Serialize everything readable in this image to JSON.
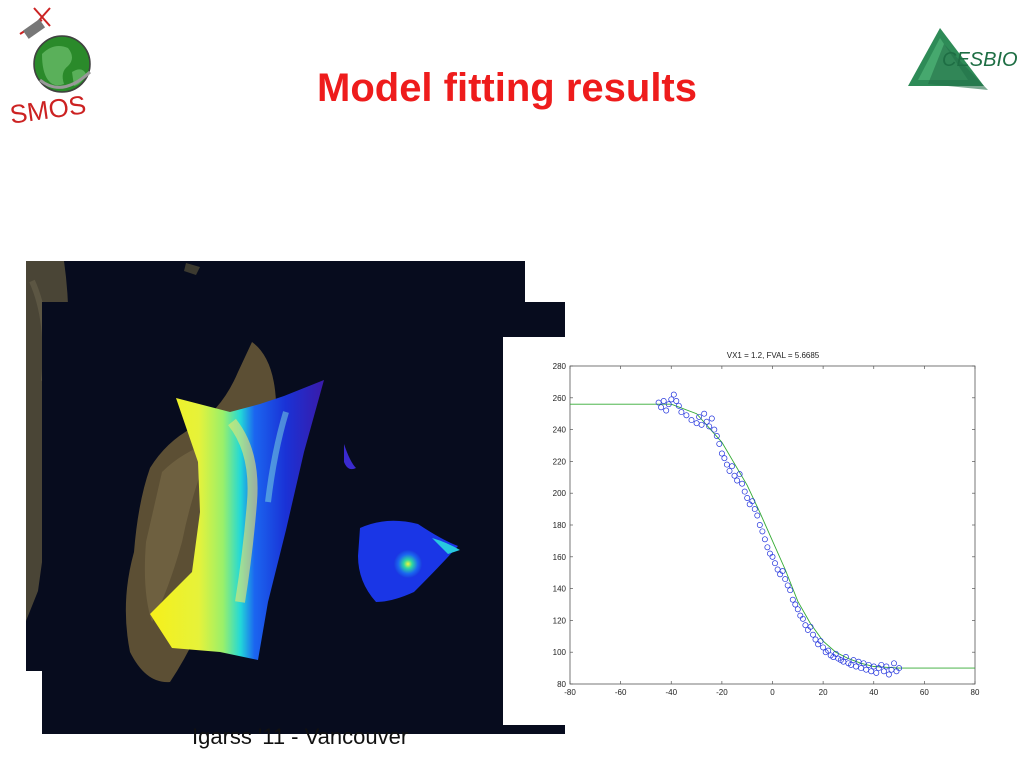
{
  "slide": {
    "title": "Model fitting results",
    "footer": "Igarss '11 - Vancouver"
  },
  "logos": {
    "left": "SMOS",
    "right": "CESBIO"
  },
  "colors": {
    "title": "#ee1c1c",
    "points": "#2233dd",
    "fit_line": "#33aa33"
  },
  "chart_data": {
    "type": "scatter",
    "title": "VX1 = 1.2, FVAL = 5.6685",
    "xlabel": "",
    "ylabel": "",
    "xlim": [
      -80,
      80
    ],
    "ylim": [
      80,
      280
    ],
    "x_ticks": [
      -80,
      -60,
      -40,
      -20,
      0,
      20,
      40,
      60,
      80
    ],
    "y_ticks": [
      80,
      100,
      120,
      140,
      160,
      180,
      200,
      220,
      240,
      260,
      280
    ],
    "grid": false,
    "series": [
      {
        "marker": "circle",
        "points": [
          [
            -45,
            257
          ],
          [
            -44,
            254
          ],
          [
            -43,
            258
          ],
          [
            -42,
            252
          ],
          [
            -41,
            256
          ],
          [
            -40,
            259
          ],
          [
            -39,
            262
          ],
          [
            -38,
            258
          ],
          [
            -37,
            255
          ],
          [
            -36,
            251
          ],
          [
            -34,
            249
          ],
          [
            -32,
            246
          ],
          [
            -30,
            244
          ],
          [
            -29,
            248
          ],
          [
            -28,
            243
          ],
          [
            -27,
            250
          ],
          [
            -26,
            245
          ],
          [
            -25,
            242
          ],
          [
            -24,
            247
          ],
          [
            -23,
            240
          ],
          [
            -22,
            236
          ],
          [
            -21,
            231
          ],
          [
            -20,
            225
          ],
          [
            -19,
            222
          ],
          [
            -18,
            218
          ],
          [
            -17,
            214
          ],
          [
            -16,
            217
          ],
          [
            -15,
            211
          ],
          [
            -14,
            208
          ],
          [
            -13,
            212
          ],
          [
            -12,
            206
          ],
          [
            -11,
            201
          ],
          [
            -10,
            197
          ],
          [
            -9,
            193
          ],
          [
            -8,
            195
          ],
          [
            -7,
            190
          ],
          [
            -6,
            186
          ],
          [
            -5,
            180
          ],
          [
            -4,
            176
          ],
          [
            -3,
            171
          ],
          [
            -2,
            166
          ],
          [
            -1,
            162
          ],
          [
            0,
            160
          ],
          [
            1,
            156
          ],
          [
            2,
            152
          ],
          [
            3,
            149
          ],
          [
            4,
            151
          ],
          [
            5,
            146
          ],
          [
            6,
            142
          ],
          [
            7,
            139
          ],
          [
            8,
            133
          ],
          [
            9,
            130
          ],
          [
            10,
            127
          ],
          [
            11,
            123
          ],
          [
            12,
            121
          ],
          [
            13,
            117
          ],
          [
            14,
            114
          ],
          [
            15,
            116
          ],
          [
            16,
            111
          ],
          [
            17,
            108
          ],
          [
            18,
            105
          ],
          [
            19,
            107
          ],
          [
            20,
            103
          ],
          [
            21,
            100
          ],
          [
            22,
            101
          ],
          [
            23,
            98
          ],
          [
            24,
            97
          ],
          [
            25,
            99
          ],
          [
            26,
            96
          ],
          [
            27,
            95
          ],
          [
            28,
            94
          ],
          [
            29,
            97
          ],
          [
            30,
            93
          ],
          [
            31,
            92
          ],
          [
            32,
            95
          ],
          [
            33,
            91
          ],
          [
            34,
            94
          ],
          [
            35,
            90
          ],
          [
            36,
            93
          ],
          [
            37,
            89
          ],
          [
            38,
            92
          ],
          [
            39,
            88
          ],
          [
            40,
            91
          ],
          [
            41,
            87
          ],
          [
            42,
            90
          ],
          [
            43,
            92
          ],
          [
            44,
            88
          ],
          [
            45,
            91
          ],
          [
            46,
            86
          ],
          [
            47,
            89
          ],
          [
            48,
            93
          ],
          [
            49,
            88
          ],
          [
            50,
            90
          ]
        ]
      },
      {
        "marker": "line",
        "points": [
          [
            -80,
            256
          ],
          [
            -40,
            256
          ],
          [
            -30,
            250
          ],
          [
            -20,
            232
          ],
          [
            -10,
            205
          ],
          [
            -5,
            188
          ],
          [
            0,
            170
          ],
          [
            5,
            152
          ],
          [
            10,
            132
          ],
          [
            15,
            118
          ],
          [
            20,
            107
          ],
          [
            25,
            100
          ],
          [
            30,
            96
          ],
          [
            35,
            93
          ],
          [
            40,
            91
          ],
          [
            50,
            90
          ],
          [
            80,
            90
          ]
        ]
      }
    ]
  }
}
